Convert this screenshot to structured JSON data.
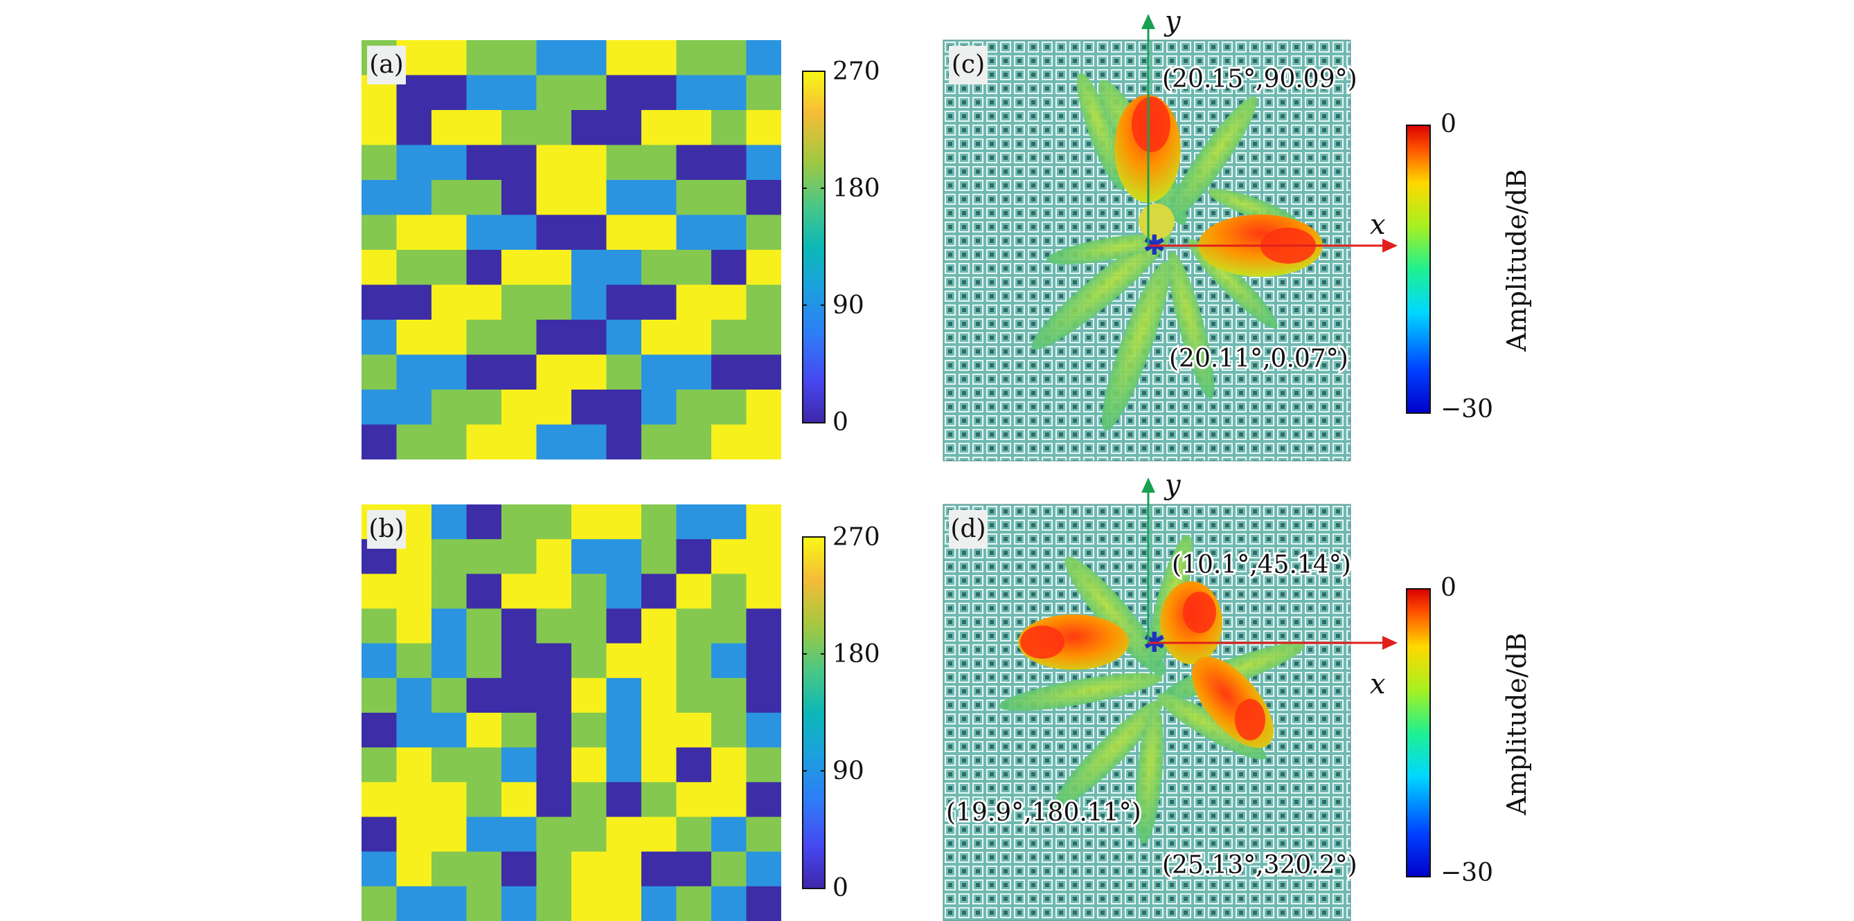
{
  "panels": {
    "a": {
      "label": "(a)"
    },
    "b": {
      "label": "(b)"
    },
    "c": {
      "label": "(c)",
      "x_axis": "x",
      "y_axis": "y",
      "annotations": [
        "(20.15°,90.09°)",
        "(20.11°,0.07°)"
      ]
    },
    "d": {
      "label": "(d)",
      "x_axis": "x",
      "y_axis": "y",
      "annotations": [
        "(10.1°,45.14°)",
        "(19.9°,180.11°)",
        "(25.13°,320.2°)"
      ]
    }
  },
  "phase_colorbar": {
    "ticks": [
      "270",
      "180",
      "90",
      "0"
    ],
    "range": [
      0,
      270
    ]
  },
  "amplitude_colorbar": {
    "title": "Amplitude/dB",
    "ticks": [
      "0",
      "−30"
    ],
    "range": [
      -30,
      0
    ]
  },
  "colors": {
    "phase_0": "#3d2ea8",
    "phase_90": "#2b94e0",
    "phase_180": "#84c850",
    "phase_270": "#f8f01c",
    "x_axis_arrow": "#e0201c",
    "y_axis_arrow": "#1aa050",
    "metasurface_bg": "#6fb9b2"
  },
  "coding_patterns": {
    "a": [
      [
        2,
        3,
        3,
        2,
        2,
        1,
        1,
        3,
        3,
        2,
        2,
        1
      ],
      [
        3,
        0,
        0,
        1,
        1,
        2,
        2,
        0,
        0,
        1,
        1,
        2
      ],
      [
        3,
        0,
        3,
        3,
        2,
        2,
        0,
        0,
        3,
        3,
        2,
        3
      ],
      [
        2,
        1,
        1,
        0,
        0,
        3,
        3,
        2,
        2,
        0,
        0,
        1
      ],
      [
        1,
        1,
        2,
        2,
        0,
        3,
        3,
        1,
        1,
        2,
        2,
        0
      ],
      [
        2,
        3,
        3,
        1,
        1,
        0,
        0,
        3,
        3,
        1,
        1,
        2
      ],
      [
        3,
        2,
        2,
        0,
        3,
        3,
        1,
        1,
        2,
        2,
        0,
        3
      ],
      [
        0,
        0,
        3,
        3,
        2,
        2,
        1,
        0,
        0,
        3,
        3,
        2
      ],
      [
        1,
        3,
        3,
        2,
        2,
        0,
        0,
        1,
        3,
        3,
        2,
        2
      ],
      [
        2,
        1,
        1,
        0,
        0,
        3,
        3,
        2,
        1,
        1,
        0,
        0
      ],
      [
        1,
        1,
        2,
        2,
        3,
        3,
        0,
        0,
        1,
        2,
        2,
        3
      ],
      [
        0,
        2,
        2,
        3,
        3,
        1,
        1,
        0,
        2,
        2,
        3,
        3
      ]
    ],
    "b": [
      [
        3,
        3,
        1,
        0,
        2,
        2,
        3,
        3,
        2,
        1,
        1,
        3
      ],
      [
        0,
        3,
        2,
        2,
        2,
        3,
        1,
        1,
        2,
        0,
        3,
        3
      ],
      [
        3,
        3,
        2,
        0,
        3,
        3,
        2,
        1,
        0,
        3,
        2,
        3
      ],
      [
        2,
        3,
        1,
        2,
        0,
        2,
        2,
        0,
        3,
        2,
        2,
        0
      ],
      [
        1,
        2,
        1,
        2,
        0,
        0,
        2,
        3,
        3,
        2,
        1,
        0
      ],
      [
        2,
        1,
        2,
        0,
        0,
        0,
        3,
        1,
        3,
        2,
        2,
        0
      ],
      [
        0,
        1,
        1,
        3,
        2,
        0,
        2,
        1,
        3,
        3,
        2,
        1
      ],
      [
        2,
        3,
        2,
        2,
        1,
        0,
        3,
        1,
        3,
        0,
        3,
        2
      ],
      [
        3,
        3,
        3,
        2,
        3,
        0,
        2,
        0,
        2,
        3,
        3,
        0
      ],
      [
        0,
        3,
        3,
        1,
        1,
        2,
        2,
        3,
        3,
        2,
        1,
        2
      ],
      [
        1,
        3,
        2,
        2,
        0,
        2,
        3,
        3,
        0,
        0,
        2,
        1
      ],
      [
        2,
        1,
        1,
        2,
        1,
        2,
        3,
        3,
        1,
        2,
        1,
        0
      ]
    ]
  }
}
